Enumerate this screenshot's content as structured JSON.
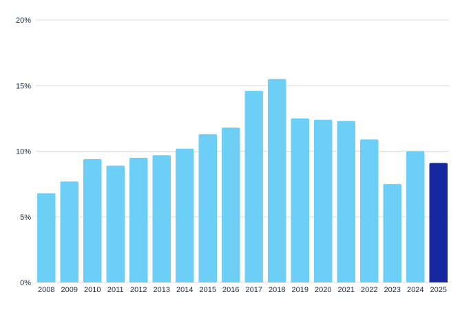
{
  "chart_data": {
    "type": "bar",
    "title": "",
    "xlabel": "",
    "ylabel": "",
    "categories": [
      "2008",
      "2009",
      "2010",
      "2011",
      "2012",
      "2013",
      "2014",
      "2015",
      "2016",
      "2017",
      "2018",
      "2019",
      "2020",
      "2021",
      "2022",
      "2023",
      "2024",
      "2025"
    ],
    "values": [
      6.8,
      7.7,
      9.4,
      8.9,
      9.5,
      9.7,
      10.2,
      11.3,
      11.8,
      14.6,
      15.5,
      12.5,
      12.4,
      12.3,
      10.9,
      7.5,
      10.0,
      9.1
    ],
    "ylim": [
      0,
      20
    ],
    "yticks": [
      0,
      5,
      10,
      15,
      20
    ],
    "ytick_labels": [
      "0%",
      "5%",
      "10%",
      "15%",
      "20%"
    ],
    "grid": true,
    "colors": {
      "bar": "#6dcff6",
      "highlight": "#1627a0",
      "grid": "#d9dde3",
      "text": "#1f2a44"
    },
    "highlight_category": "2025"
  }
}
